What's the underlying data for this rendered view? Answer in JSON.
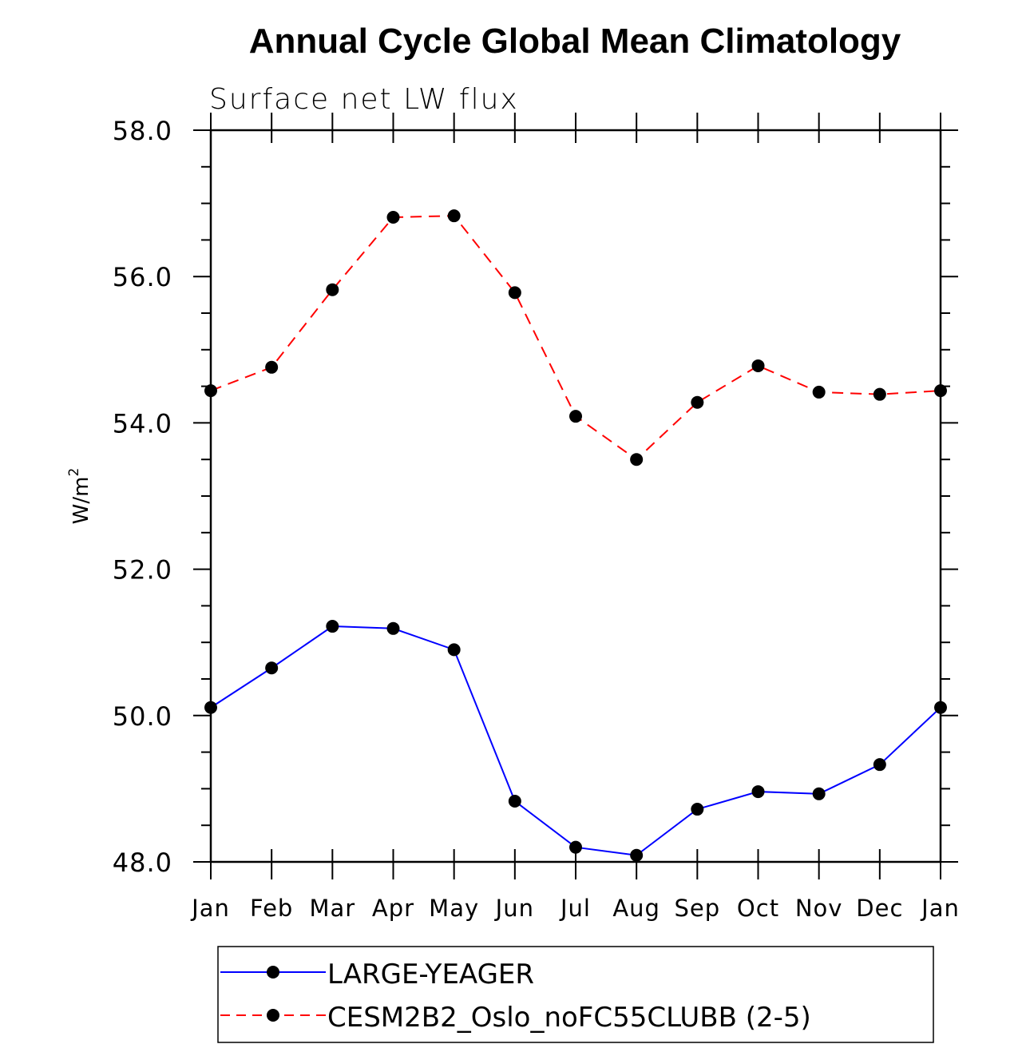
{
  "chart_data": {
    "type": "line",
    "title": "Annual Cycle Global Mean Climatology",
    "subtitle": "Surface net LW flux",
    "xlabel": "",
    "ylabel": "W/m",
    "ylabel_superscript": "2",
    "categories": [
      "Jan",
      "Feb",
      "Mar",
      "Apr",
      "May",
      "Jun",
      "Jul",
      "Aug",
      "Sep",
      "Oct",
      "Nov",
      "Dec",
      "Jan"
    ],
    "ylim": [
      48.0,
      58.0
    ],
    "yticks_major": [
      48.0,
      50.0,
      52.0,
      54.0,
      56.0,
      58.0
    ],
    "ytick_labels": [
      "48.0",
      "50.0",
      "52.0",
      "54.0",
      "56.0",
      "58.0"
    ],
    "yticks_minor_step": 0.5,
    "grid": false,
    "legend_position": "bottom-center",
    "series": [
      {
        "name": "LARGE-YEAGER",
        "color": "#0000ff",
        "line_style": "solid",
        "marker": "filled-circle",
        "marker_color": "#000000",
        "values": [
          50.11,
          50.65,
          51.22,
          51.19,
          50.9,
          48.83,
          48.2,
          48.09,
          48.72,
          48.96,
          48.93,
          49.33,
          50.11
        ]
      },
      {
        "name": "CESM2B2_Oslo_noFC55CLUBB (2-5)",
        "color": "#ff0000",
        "line_style": "dashed",
        "marker": "filled-circle",
        "marker_color": "#000000",
        "values": [
          54.44,
          54.76,
          55.82,
          56.81,
          56.83,
          55.78,
          54.09,
          53.5,
          54.28,
          54.78,
          54.42,
          54.39,
          54.44
        ]
      }
    ]
  }
}
